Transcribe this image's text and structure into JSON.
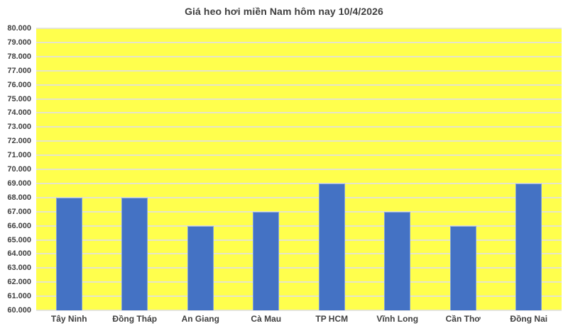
{
  "chart_data": {
    "type": "bar",
    "title": "Giá heo hơi miền Nam hôm nay 10/4/2026",
    "categories": [
      "Tây Ninh",
      "Đồng Tháp",
      "An Giang",
      "Cà Mau",
      "TP HCM",
      "Vĩnh Long",
      "Cần Thơ",
      "Đồng Nai"
    ],
    "values": [
      68000,
      68000,
      66000,
      67000,
      69000,
      67000,
      66000,
      69000
    ],
    "xlabel": "",
    "ylabel": "",
    "ylim": [
      60000,
      80000
    ],
    "ytick_step": 1000,
    "ytick_labels": [
      "80.000",
      "79.000",
      "78.000",
      "77.000",
      "76.000",
      "75.000",
      "74.000",
      "73.000",
      "72.000",
      "71.000",
      "70.000",
      "69.000",
      "68.000",
      "67.000",
      "66.000",
      "65.000",
      "64.000",
      "63.000",
      "62.000",
      "61.000",
      "60.000"
    ],
    "grid": "horizontal",
    "legend": "none",
    "colors": {
      "bar": "#4472C4",
      "plot_background": "#FFFF4D",
      "gridline": "#E2E2E2",
      "text": "#404040",
      "page_background": "#FFFFFF"
    }
  }
}
